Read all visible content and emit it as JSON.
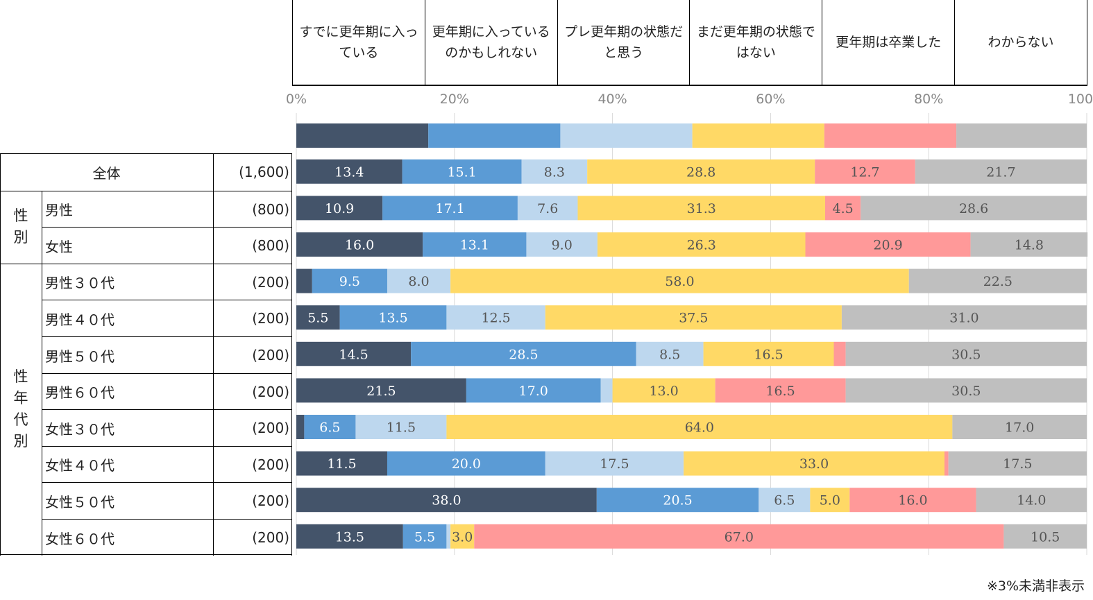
{
  "colors": [
    "#44546a",
    "#5b9bd5",
    "#bdd7ee",
    "#ffd966",
    "#ff9999",
    "#bfbfbf"
  ],
  "legend": [
    "すでに更年期に入っている",
    "更年期に入っているのかもしれない",
    "プレ更年期の状態だと思う",
    "まだ更年期の状態ではない",
    "更年期は卒業した",
    "わからない"
  ],
  "legend_lines": [
    [
      "すでに更年期に入っ",
      "ている"
    ],
    [
      "更年期に入っている",
      "のかもしれない"
    ],
    [
      "プレ更年期の状態だ",
      "と思う"
    ],
    [
      "まだ更年期の状態で",
      "はない"
    ],
    [
      "更年期は卒業した"
    ],
    [
      "わからない"
    ]
  ],
  "groups": {
    "sex": "性別",
    "age": "性年代別"
  },
  "footnote": "※3%未満非表示",
  "chart_data": {
    "type": "bar",
    "orientation": "horizontal-stacked-100",
    "axis": {
      "ticks": [
        "0%",
        "20%",
        "40%",
        "60%",
        "80%",
        "100%"
      ],
      "xlim": [
        0,
        100
      ]
    },
    "legend_bar": [
      16.7,
      16.7,
      16.7,
      16.7,
      16.7,
      16.5
    ],
    "categories": [
      "全体",
      "男性",
      "女性",
      "男性３０代",
      "男性４０代",
      "男性５０代",
      "男性６０代",
      "女性３０代",
      "女性４０代",
      "女性５０代",
      "女性６０代"
    ],
    "n": [
      "(1,600)",
      "(800)",
      "(800)",
      "(200)",
      "(200)",
      "(200)",
      "(200)",
      "(200)",
      "(200)",
      "(200)",
      "(200)"
    ],
    "series": [
      {
        "name": "すでに更年期に入っている",
        "values": [
          13.4,
          10.9,
          16.0,
          2.0,
          5.5,
          14.5,
          21.5,
          1.0,
          11.5,
          38.0,
          13.5
        ]
      },
      {
        "name": "更年期に入っているのかもしれない",
        "values": [
          15.1,
          17.1,
          13.1,
          9.5,
          13.5,
          28.5,
          17.0,
          6.5,
          20.0,
          20.5,
          5.5
        ]
      },
      {
        "name": "プレ更年期の状態だと思う",
        "values": [
          8.3,
          7.6,
          9.0,
          8.0,
          12.5,
          8.5,
          1.5,
          11.5,
          17.5,
          6.5,
          0.5
        ]
      },
      {
        "name": "まだ更年期の状態ではない",
        "values": [
          28.8,
          31.3,
          26.3,
          58.0,
          37.5,
          16.5,
          13.0,
          64.0,
          33.0,
          5.0,
          3.0
        ]
      },
      {
        "name": "更年期は卒業した",
        "values": [
          12.7,
          4.5,
          20.9,
          0.0,
          0.0,
          1.5,
          16.5,
          0.0,
          0.5,
          16.0,
          67.0
        ]
      },
      {
        "name": "わからない",
        "values": [
          21.7,
          28.6,
          14.8,
          22.5,
          31.0,
          30.5,
          30.5,
          17.0,
          17.5,
          14.0,
          10.5
        ]
      }
    ],
    "label_threshold": 3
  }
}
